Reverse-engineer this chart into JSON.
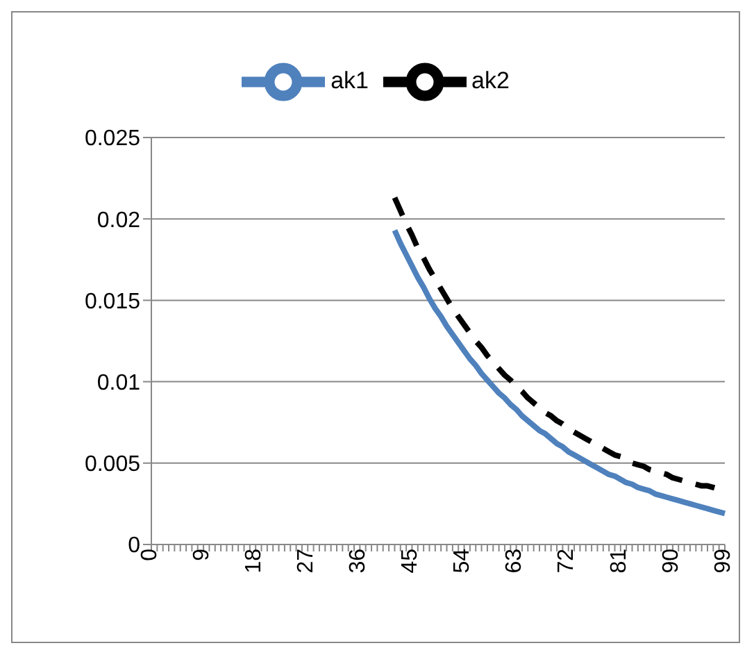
{
  "chart_data": {
    "type": "line",
    "categories": [
      "0",
      null,
      null,
      null,
      null,
      null,
      null,
      null,
      null,
      "9",
      null,
      null,
      null,
      null,
      null,
      null,
      null,
      null,
      "18",
      null,
      null,
      null,
      null,
      null,
      null,
      null,
      null,
      "27",
      null,
      null,
      null,
      null,
      null,
      null,
      null,
      null,
      "36",
      null,
      null,
      null,
      null,
      null,
      null,
      null,
      null,
      "45",
      null,
      null,
      null,
      null,
      null,
      null,
      null,
      null,
      "54",
      null,
      null,
      null,
      null,
      null,
      null,
      null,
      null,
      "63",
      null,
      null,
      null,
      null,
      null,
      null,
      null,
      null,
      "72",
      null,
      null,
      null,
      null,
      null,
      null,
      null,
      null,
      "81",
      null,
      null,
      null,
      null,
      null,
      null,
      null,
      null,
      "90",
      null,
      null,
      null,
      null,
      null,
      null,
      null,
      null,
      "99"
    ],
    "series": [
      {
        "name": "ak1",
        "color": "#4f81bd",
        "line_style": "solid",
        "values": [
          null,
          null,
          null,
          null,
          null,
          null,
          null,
          null,
          null,
          null,
          null,
          null,
          null,
          null,
          null,
          null,
          null,
          null,
          null,
          null,
          null,
          null,
          null,
          null,
          null,
          null,
          null,
          null,
          null,
          null,
          null,
          null,
          null,
          null,
          null,
          null,
          null,
          null,
          null,
          null,
          null,
          null,
          0.0193,
          0.0185,
          0.0178,
          0.0171,
          0.0164,
          0.0158,
          0.0151,
          0.0145,
          0.014,
          0.0134,
          0.0129,
          0.0124,
          0.0119,
          0.0114,
          0.011,
          0.0105,
          0.0101,
          0.0097,
          0.0093,
          0.009,
          0.0086,
          0.0083,
          0.0079,
          0.0076,
          0.0073,
          0.007,
          0.0068,
          0.0065,
          0.0062,
          0.006,
          0.0057,
          0.0055,
          0.0053,
          0.0051,
          0.0049,
          0.0047,
          0.0045,
          0.0043,
          0.0042,
          0.004,
          0.0038,
          0.0037,
          0.0035,
          0.0034,
          0.0033,
          0.0031,
          0.003,
          0.0029,
          0.0028,
          0.0027,
          0.0026,
          0.0025,
          0.0024,
          0.0023,
          0.0022,
          0.0021,
          0.002,
          0.0019
        ]
      },
      {
        "name": "ak2",
        "color": "#000000",
        "line_style": "dashed",
        "values": [
          null,
          null,
          null,
          null,
          null,
          null,
          null,
          null,
          null,
          null,
          null,
          null,
          null,
          null,
          null,
          null,
          null,
          null,
          null,
          null,
          null,
          null,
          null,
          null,
          null,
          null,
          null,
          null,
          null,
          null,
          null,
          null,
          null,
          null,
          null,
          null,
          null,
          null,
          null,
          null,
          null,
          null,
          0.0213,
          0.0205,
          0.0197,
          0.019,
          0.0182,
          0.0176,
          0.0169,
          0.0163,
          0.0157,
          0.0151,
          0.0145,
          0.014,
          0.0135,
          0.013,
          0.0125,
          0.0121,
          0.0116,
          0.0112,
          0.0108,
          0.0104,
          0.0101,
          0.0097,
          0.0094,
          0.009,
          0.0087,
          0.0084,
          0.0081,
          0.0079,
          0.0076,
          0.0074,
          0.0071,
          0.0069,
          0.0067,
          0.0065,
          0.0063,
          0.0061,
          0.0059,
          0.0057,
          0.0055,
          0.0054,
          0.0052,
          0.005,
          0.0049,
          0.0048,
          0.0046,
          0.0045,
          0.0044,
          0.0043,
          0.0041,
          0.004,
          0.0039,
          0.0038,
          0.0037,
          0.0036,
          0.0036,
          0.0035,
          0.0034,
          0.0033
        ]
      }
    ],
    "ylim": [
      0,
      0.025
    ],
    "yticks": [
      0,
      0.005,
      0.01,
      0.015,
      0.02,
      0.025
    ],
    "grid": "y",
    "legend": "top",
    "marker": "none"
  }
}
